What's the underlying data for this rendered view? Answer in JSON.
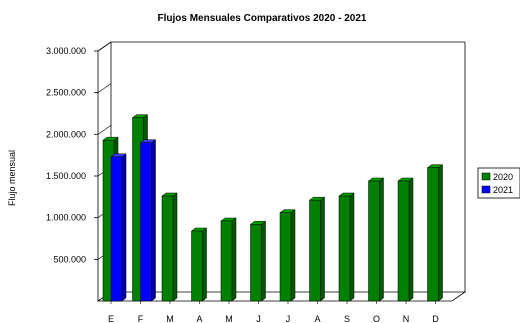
{
  "chart_data": {
    "type": "bar",
    "title": "Flujos Mensuales Comparativos 2020 - 2021",
    "xlabel": "",
    "ylabel": "Flujo mensual",
    "categories": [
      "E",
      "F",
      "M",
      "A",
      "M",
      "J",
      "J",
      "A",
      "S",
      "O",
      "N",
      "D"
    ],
    "yticks": [
      "500.000",
      "1.000.000",
      "1.500.000",
      "2.000.000",
      "2.500.000",
      "3.000.000"
    ],
    "ylim": [
      0,
      3000000
    ],
    "series": [
      {
        "name": "2020",
        "color": "#008000",
        "values": [
          1930000,
          2200000,
          1260000,
          840000,
          960000,
          920000,
          1060000,
          1210000,
          1260000,
          1440000,
          1440000,
          1600000
        ]
      },
      {
        "name": "2021",
        "color": "#0000ff",
        "values": [
          1730000,
          1900000,
          null,
          null,
          null,
          null,
          null,
          null,
          null,
          null,
          null,
          null
        ]
      }
    ],
    "legend_position": "right",
    "grid": false,
    "style": "3d"
  }
}
